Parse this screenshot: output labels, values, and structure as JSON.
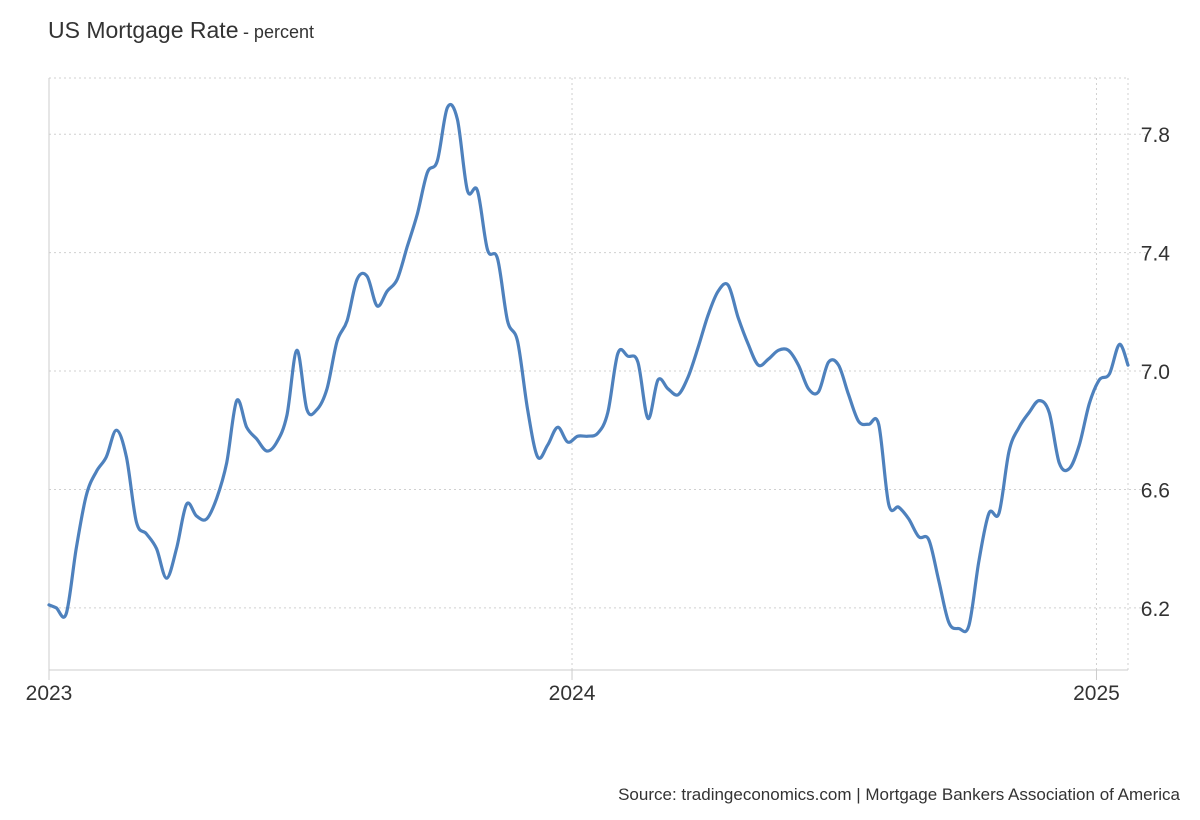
{
  "chart_data": {
    "type": "line",
    "title": "US Mortgage Rate",
    "subtitle": "- percent",
    "source": "Source: tradingeconomics.com | Mortgage Bankers Association of America",
    "x_tick_labels": [
      "2023",
      "2024",
      "2025"
    ],
    "y_ticks": [
      6.2,
      6.6,
      7.0,
      7.4,
      7.8
    ],
    "y_tick_labels": [
      "6.2",
      "6.6",
      "7.0",
      "7.4",
      "7.8"
    ],
    "ylim": [
      5.99,
      7.99
    ],
    "xlim": [
      "2023-01-01",
      "2025-01-23"
    ],
    "grid": true,
    "line_color": "#4e81bd",
    "series": [
      {
        "points": [
          [
            "2023-01-01",
            6.21
          ],
          [
            "2023-01-06",
            6.2
          ],
          [
            "2023-01-13",
            6.18
          ],
          [
            "2023-01-20",
            6.4
          ],
          [
            "2023-01-27",
            6.58
          ],
          [
            "2023-02-03",
            6.66
          ],
          [
            "2023-02-10",
            6.71
          ],
          [
            "2023-02-17",
            6.8
          ],
          [
            "2023-02-24",
            6.71
          ],
          [
            "2023-03-03",
            6.49
          ],
          [
            "2023-03-10",
            6.45
          ],
          [
            "2023-03-17",
            6.4
          ],
          [
            "2023-03-24",
            6.3
          ],
          [
            "2023-03-31",
            6.4
          ],
          [
            "2023-04-07",
            6.55
          ],
          [
            "2023-04-14",
            6.51
          ],
          [
            "2023-04-21",
            6.5
          ],
          [
            "2023-04-28",
            6.57
          ],
          [
            "2023-05-05",
            6.69
          ],
          [
            "2023-05-12",
            6.9
          ],
          [
            "2023-05-19",
            6.81
          ],
          [
            "2023-05-26",
            6.77
          ],
          [
            "2023-06-02",
            6.73
          ],
          [
            "2023-06-09",
            6.76
          ],
          [
            "2023-06-16",
            6.85
          ],
          [
            "2023-06-23",
            7.07
          ],
          [
            "2023-06-30",
            6.87
          ],
          [
            "2023-07-07",
            6.87
          ],
          [
            "2023-07-14",
            6.94
          ],
          [
            "2023-07-21",
            7.1
          ],
          [
            "2023-07-28",
            7.17
          ],
          [
            "2023-08-04",
            7.31
          ],
          [
            "2023-08-11",
            7.32
          ],
          [
            "2023-08-18",
            7.22
          ],
          [
            "2023-08-25",
            7.27
          ],
          [
            "2023-09-01",
            7.31
          ],
          [
            "2023-09-08",
            7.42
          ],
          [
            "2023-09-15",
            7.53
          ],
          [
            "2023-09-22",
            7.67
          ],
          [
            "2023-09-29",
            7.71
          ],
          [
            "2023-10-06",
            7.89
          ],
          [
            "2023-10-13",
            7.85
          ],
          [
            "2023-10-20",
            7.61
          ],
          [
            "2023-10-27",
            7.61
          ],
          [
            "2023-11-03",
            7.41
          ],
          [
            "2023-11-10",
            7.38
          ],
          [
            "2023-11-17",
            7.17
          ],
          [
            "2023-11-24",
            7.1
          ],
          [
            "2023-12-01",
            6.87
          ],
          [
            "2023-12-08",
            6.71
          ],
          [
            "2023-12-15",
            6.75
          ],
          [
            "2023-12-22",
            6.81
          ],
          [
            "2023-12-29",
            6.76
          ],
          [
            "2024-01-05",
            6.78
          ],
          [
            "2024-01-12",
            6.78
          ],
          [
            "2024-01-19",
            6.79
          ],
          [
            "2024-01-26",
            6.86
          ],
          [
            "2024-02-02",
            7.06
          ],
          [
            "2024-02-09",
            7.05
          ],
          [
            "2024-02-16",
            7.03
          ],
          [
            "2024-02-23",
            6.84
          ],
          [
            "2024-03-01",
            6.97
          ],
          [
            "2024-03-08",
            6.94
          ],
          [
            "2024-03-15",
            6.92
          ],
          [
            "2024-03-22",
            6.98
          ],
          [
            "2024-03-29",
            7.08
          ],
          [
            "2024-04-05",
            7.19
          ],
          [
            "2024-04-12",
            7.27
          ],
          [
            "2024-04-19",
            7.29
          ],
          [
            "2024-04-26",
            7.18
          ],
          [
            "2024-05-03",
            7.09
          ],
          [
            "2024-05-10",
            7.02
          ],
          [
            "2024-05-17",
            7.04
          ],
          [
            "2024-05-24",
            7.07
          ],
          [
            "2024-05-31",
            7.07
          ],
          [
            "2024-06-07",
            7.02
          ],
          [
            "2024-06-14",
            6.94
          ],
          [
            "2024-06-21",
            6.93
          ],
          [
            "2024-06-28",
            7.03
          ],
          [
            "2024-07-05",
            7.02
          ],
          [
            "2024-07-12",
            6.92
          ],
          [
            "2024-07-19",
            6.83
          ],
          [
            "2024-07-26",
            6.82
          ],
          [
            "2024-08-02",
            6.82
          ],
          [
            "2024-08-09",
            6.55
          ],
          [
            "2024-08-16",
            6.54
          ],
          [
            "2024-08-23",
            6.5
          ],
          [
            "2024-08-30",
            6.44
          ],
          [
            "2024-09-06",
            6.43
          ],
          [
            "2024-09-13",
            6.29
          ],
          [
            "2024-09-20",
            6.15
          ],
          [
            "2024-09-27",
            6.13
          ],
          [
            "2024-10-04",
            6.14
          ],
          [
            "2024-10-11",
            6.36
          ],
          [
            "2024-10-18",
            6.52
          ],
          [
            "2024-10-25",
            6.52
          ],
          [
            "2024-11-01",
            6.73
          ],
          [
            "2024-11-08",
            6.81
          ],
          [
            "2024-11-15",
            6.86
          ],
          [
            "2024-11-22",
            6.9
          ],
          [
            "2024-11-29",
            6.86
          ],
          [
            "2024-12-06",
            6.69
          ],
          [
            "2024-12-13",
            6.67
          ],
          [
            "2024-12-20",
            6.75
          ],
          [
            "2024-12-27",
            6.89
          ],
          [
            "2025-01-03",
            6.97
          ],
          [
            "2025-01-10",
            6.99
          ],
          [
            "2025-01-17",
            7.09
          ],
          [
            "2025-01-23",
            7.02
          ]
        ]
      }
    ]
  }
}
